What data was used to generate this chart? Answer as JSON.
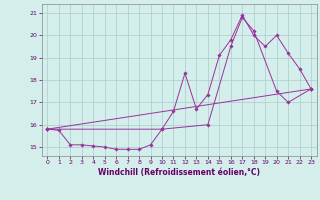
{
  "title": "",
  "xlabel": "Windchill (Refroidissement éolien,°C)",
  "background_color": "#d4eeec",
  "grid_color": "#aacccc",
  "line_color": "#993399",
  "xlim": [
    -0.5,
    23.5
  ],
  "ylim": [
    14.6,
    21.4
  ],
  "yticks": [
    15,
    16,
    17,
    18,
    19,
    20,
    21
  ],
  "xticks": [
    0,
    1,
    2,
    3,
    4,
    5,
    6,
    7,
    8,
    9,
    10,
    11,
    12,
    13,
    14,
    15,
    16,
    17,
    18,
    19,
    20,
    21,
    22,
    23
  ],
  "series1_x": [
    0,
    1,
    2,
    3,
    4,
    5,
    6,
    7,
    8,
    9,
    10,
    11,
    12,
    13,
    14,
    15,
    16,
    17,
    18,
    19,
    20,
    21,
    22,
    23
  ],
  "series1_y": [
    15.8,
    15.75,
    15.1,
    15.1,
    15.05,
    15.0,
    14.9,
    14.9,
    14.9,
    15.1,
    15.8,
    16.6,
    18.3,
    16.7,
    17.35,
    19.1,
    19.8,
    20.9,
    20.0,
    19.5,
    20.0,
    19.2,
    18.5,
    17.6
  ],
  "series2_x": [
    0,
    10,
    14,
    16,
    17,
    18,
    20,
    21,
    23
  ],
  "series2_y": [
    15.8,
    15.8,
    16.0,
    19.5,
    20.8,
    20.2,
    17.5,
    17.0,
    17.6
  ],
  "series3_x": [
    0,
    23
  ],
  "series3_y": [
    15.8,
    17.6
  ],
  "marker_size": 1.8,
  "linewidth": 0.7,
  "tick_fontsize": 4.5,
  "xlabel_fontsize": 5.5
}
